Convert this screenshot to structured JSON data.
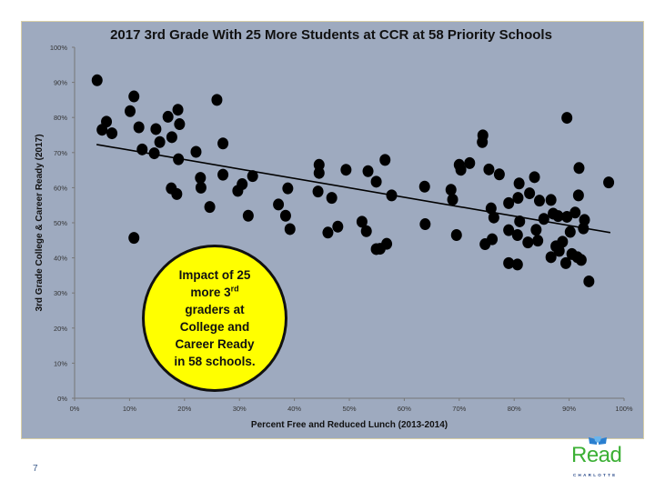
{
  "chart_data": {
    "type": "scatter",
    "title": "2017 3rd Grade With 25 More Students at CCR at 58 Priority Schools",
    "xlabel": "Percent Free and Reduced Lunch (2013-2014)",
    "ylabel": "3rd Grade College & Career Ready (2017)",
    "xlim": [
      0,
      100
    ],
    "ylim": [
      0,
      100
    ],
    "xticks": [
      "0%",
      "10%",
      "20%",
      "30%",
      "40%",
      "50%",
      "60%",
      "70%",
      "80%",
      "90%",
      "100%"
    ],
    "yticks": [
      "0%",
      "10%",
      "20%",
      "30%",
      "40%",
      "50%",
      "60%",
      "70%",
      "80%",
      "90%",
      "100%"
    ],
    "grid": false,
    "trendline": {
      "x": [
        4,
        97.5
      ],
      "y": [
        72.3,
        47.2
      ]
    },
    "points": [
      [
        4.1,
        90.6
      ],
      [
        5.0,
        76.5
      ],
      [
        5.8,
        78.8
      ],
      [
        6.8,
        75.5
      ],
      [
        10.1,
        81.8
      ],
      [
        10.8,
        86.0
      ],
      [
        11.7,
        77.2
      ],
      [
        12.3,
        70.9
      ],
      [
        14.5,
        69.8
      ],
      [
        14.8,
        76.7
      ],
      [
        15.5,
        73.0
      ],
      [
        17.0,
        80.2
      ],
      [
        17.7,
        74.4
      ],
      [
        18.8,
        82.2
      ],
      [
        19.1,
        78.1
      ],
      [
        18.9,
        68.1
      ],
      [
        17.6,
        59.8
      ],
      [
        18.6,
        58.2
      ],
      [
        22.1,
        70.2
      ],
      [
        22.9,
        62.8
      ],
      [
        23.0,
        60.0
      ],
      [
        24.6,
        54.5
      ],
      [
        25.9,
        85.0
      ],
      [
        27.0,
        72.6
      ],
      [
        27.0,
        63.7
      ],
      [
        29.7,
        59.1
      ],
      [
        30.5,
        61.0
      ],
      [
        31.6,
        52.0
      ],
      [
        32.4,
        63.3
      ],
      [
        37.1,
        55.2
      ],
      [
        38.4,
        52.0
      ],
      [
        38.8,
        59.8
      ],
      [
        39.2,
        48.2
      ],
      [
        44.3,
        58.9
      ],
      [
        44.5,
        66.5
      ],
      [
        44.5,
        64.2
      ],
      [
        46.8,
        57.1
      ],
      [
        46.1,
        47.2
      ],
      [
        47.9,
        48.9
      ],
      [
        49.4,
        65.1
      ],
      [
        52.3,
        50.3
      ],
      [
        53.1,
        47.6
      ],
      [
        53.4,
        64.7
      ],
      [
        54.9,
        61.7
      ],
      [
        56.5,
        67.9
      ],
      [
        57.7,
        57.8
      ],
      [
        63.7,
        60.3
      ],
      [
        63.8,
        49.6
      ],
      [
        68.5,
        59.4
      ],
      [
        68.8,
        56.6
      ],
      [
        70.0,
        66.5
      ],
      [
        70.3,
        65.1
      ],
      [
        71.9,
        67.0
      ],
      [
        74.3,
        74.9
      ],
      [
        74.2,
        73.0
      ],
      [
        75.4,
        65.2
      ],
      [
        77.3,
        63.8
      ],
      [
        75.8,
        54.1
      ],
      [
        76.3,
        51.5
      ],
      [
        79.0,
        55.6
      ],
      [
        80.9,
        61.2
      ],
      [
        80.7,
        57.1
      ],
      [
        81.0,
        50.4
      ],
      [
        82.8,
        58.4
      ],
      [
        83.7,
        63.0
      ],
      [
        84.6,
        56.3
      ],
      [
        85.4,
        51.1
      ],
      [
        86.7,
        56.5
      ],
      [
        87.1,
        52.6
      ],
      [
        88.0,
        51.9
      ],
      [
        89.6,
        51.7
      ],
      [
        89.6,
        79.9
      ],
      [
        91.1,
        52.9
      ],
      [
        91.8,
        65.6
      ],
      [
        91.7,
        57.8
      ],
      [
        92.8,
        50.8
      ],
      [
        97.2,
        61.5
      ],
      [
        84.0,
        48.0
      ],
      [
        90.2,
        47.4
      ],
      [
        10.8,
        45.7
      ],
      [
        54.9,
        42.5
      ],
      [
        55.6,
        42.6
      ],
      [
        56.8,
        44.0
      ],
      [
        69.5,
        46.5
      ],
      [
        74.7,
        43.9
      ],
      [
        76.0,
        45.3
      ],
      [
        79.0,
        47.9
      ],
      [
        80.6,
        46.5
      ],
      [
        79.0,
        38.5
      ],
      [
        80.6,
        38.1
      ],
      [
        82.5,
        44.4
      ],
      [
        84.3,
        44.9
      ],
      [
        86.7,
        40.2
      ],
      [
        87.6,
        43.3
      ],
      [
        88.8,
        44.6
      ],
      [
        88.2,
        42.0
      ],
      [
        89.4,
        38.5
      ],
      [
        90.5,
        41.1
      ],
      [
        91.5,
        40.2
      ],
      [
        92.2,
        39.4
      ],
      [
        92.6,
        48.4
      ],
      [
        93.6,
        33.3
      ]
    ],
    "annotation": {
      "line1": "Impact of 25",
      "line2a": "more 3",
      "line2sup": "rd",
      "line3": "graders at",
      "line4": "College and",
      "line5": "Career Ready",
      "line6": "in 58 schools."
    }
  },
  "colors": {
    "panel": "#9eaabf",
    "bubble": "#ffff00",
    "logo_green": "#3cb035",
    "logo_blue": "#2a7fd0"
  },
  "footer": {
    "page_number": "7",
    "logo_word": "Read",
    "logo_sub": "CHARLOTTE"
  }
}
